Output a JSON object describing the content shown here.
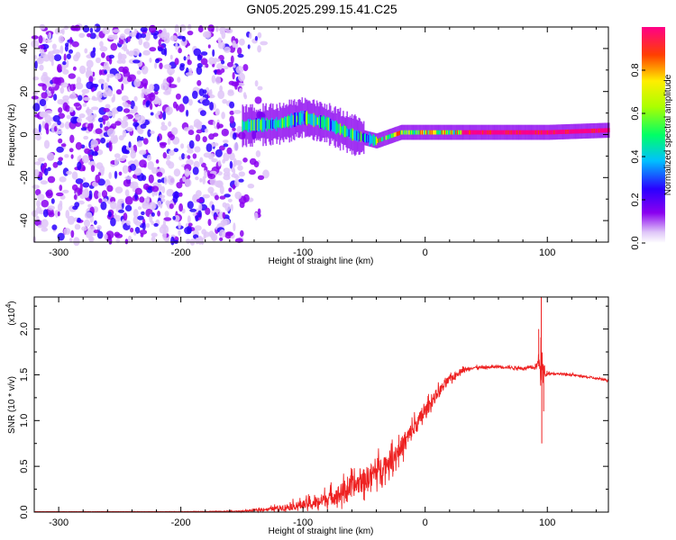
{
  "title": "GN05.2025.299.15.41.C25",
  "chart_data": [
    {
      "type": "heatmap",
      "name": "spectrogram",
      "xlabel": "Height of straight line (km)",
      "ylabel": "Frequency (Hz)",
      "xlim": [
        -320,
        150
      ],
      "ylim": [
        -50,
        50
      ],
      "xticks": [
        -300,
        -200,
        -100,
        0,
        100
      ],
      "yticks": [
        -40,
        -20,
        0,
        20,
        40
      ],
      "colorbar": {
        "label": "Normalized spectral amplitude",
        "range": [
          0,
          1
        ],
        "ticks": [
          "0.0",
          "0.2",
          "0.4",
          "0.6",
          "0.8"
        ],
        "tick_values": [
          0,
          0.2,
          0.4,
          0.6,
          0.8
        ]
      },
      "features": {
        "noise_region_x": [
          -320,
          -150
        ],
        "signal_band_center_hz": [
          [
            -150,
            4
          ],
          [
            -120,
            5
          ],
          [
            -100,
            8
          ],
          [
            -80,
            5
          ],
          [
            -60,
            0
          ],
          [
            -40,
            -3
          ],
          [
            -20,
            1
          ],
          [
            0,
            1
          ],
          [
            50,
            1
          ],
          [
            100,
            1
          ],
          [
            150,
            2
          ]
        ],
        "signal_band_half_width_hz": 3
      }
    },
    {
      "type": "line",
      "name": "snr",
      "xlabel": "Height of straight line (km)",
      "ylabel": "SNR (10 * v/v)",
      "y_multiplier": "(x10",
      "y_exponent": "4",
      "y_multiplier_close": ")",
      "xlim": [
        -320,
        150
      ],
      "ylim": [
        0,
        2.35
      ],
      "xticks": [
        -300,
        -200,
        -100,
        0,
        100
      ],
      "yticks": [
        0.0,
        0.5,
        1.0,
        1.5,
        2.0
      ],
      "ytick_labels": [
        "0.0",
        "0.5",
        "1.0",
        "1.5",
        "2.0"
      ],
      "color": "#ee2222",
      "series_envelope": {
        "x": [
          -320,
          -200,
          -150,
          -130,
          -110,
          -90,
          -70,
          -50,
          -40,
          -30,
          -20,
          -10,
          0,
          10,
          20,
          30,
          40,
          50,
          60,
          70,
          80,
          90,
          94,
          96,
          98,
          100,
          110,
          120,
          130,
          140,
          150
        ],
        "y_mean": [
          0.005,
          0.005,
          0.01,
          0.03,
          0.06,
          0.1,
          0.2,
          0.35,
          0.45,
          0.55,
          0.7,
          0.9,
          1.1,
          1.3,
          1.45,
          1.55,
          1.58,
          1.58,
          1.59,
          1.58,
          1.57,
          1.58,
          1.65,
          1.55,
          1.5,
          1.52,
          1.51,
          1.5,
          1.48,
          1.46,
          1.44
        ],
        "y_jitter": [
          0.002,
          0.003,
          0.01,
          0.03,
          0.08,
          0.12,
          0.2,
          0.25,
          0.25,
          0.22,
          0.22,
          0.2,
          0.15,
          0.12,
          0.08,
          0.05,
          0.03,
          0.03,
          0.03,
          0.03,
          0.03,
          0.03,
          0.2,
          0.5,
          0.05,
          0.03,
          0.02,
          0.02,
          0.02,
          0.02,
          0.02
        ]
      },
      "spikes": [
        {
          "x": 95,
          "y": 2.35
        },
        {
          "x": 95.5,
          "y": 0.75
        },
        {
          "x": 93,
          "y": 2.0
        },
        {
          "x": 97,
          "y": 1.1
        }
      ]
    }
  ]
}
